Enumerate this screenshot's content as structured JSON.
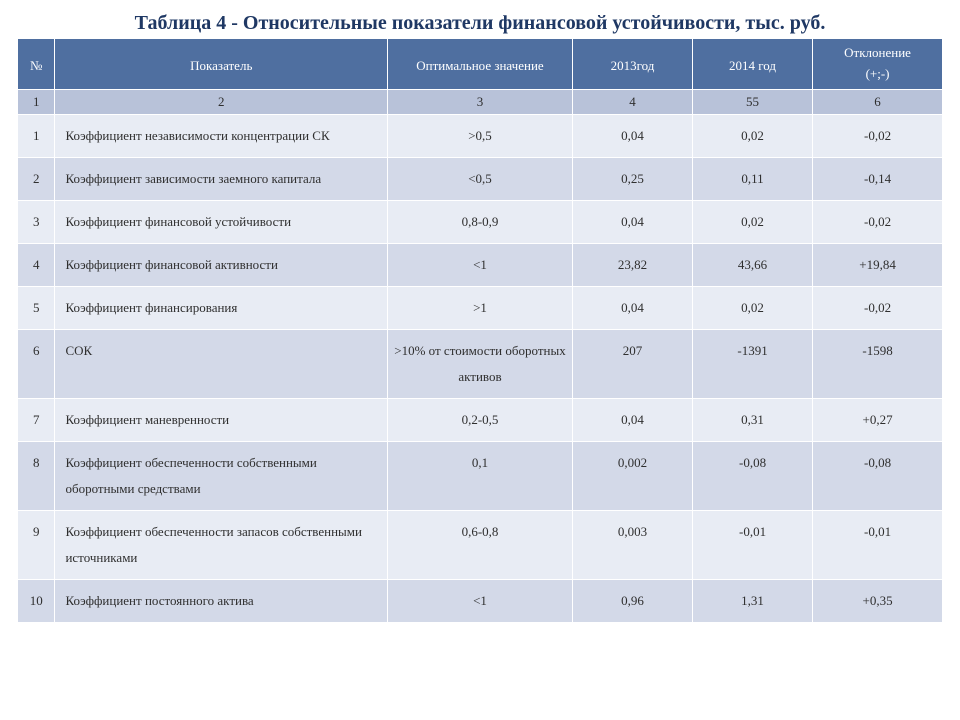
{
  "title": "Таблица 4 - Относительные показатели финансовой устойчивости, тыс. руб.",
  "title_color": "#1f3864",
  "header_bg": "#4f6fa0",
  "header_fg": "#ffffff",
  "index_row_bg": "#b8c2d9",
  "row_odd_bg": "#e8ecf4",
  "row_even_bg": "#d3d9e8",
  "columns": {
    "idx": "№",
    "name": "Показатель",
    "opt": "Оптимальное значение",
    "y1": "2013год",
    "y2": "2014 год",
    "dev": "Отклонение",
    "dev2": "(+;-)"
  },
  "index_row": [
    "1",
    "2",
    "3",
    "4",
    "55",
    "6"
  ],
  "rows": [
    {
      "idx": "1",
      "name": "Коэффициент независимости концентрации СК",
      "opt": ">0,5",
      "y1": "0,04",
      "y2": "0,02",
      "dev": "-0,02"
    },
    {
      "idx": "2",
      "name": "Коэффициент зависимости заемного капитала",
      "opt": "<0,5",
      "y1": "0,25",
      "y2": "0,11",
      "dev": "-0,14"
    },
    {
      "idx": "3",
      "name": "Коэффициент финансовой устойчивости",
      "opt": "0,8-0,9",
      "y1": "0,04",
      "y2": "0,02",
      "dev": "-0,02"
    },
    {
      "idx": "4",
      "name": "Коэффициент финансовой активности",
      "opt": "<1",
      "y1": "23,82",
      "y2": "43,66",
      "dev": "+19,84"
    },
    {
      "idx": "5",
      "name": "Коэффициент финансирования",
      "opt": ">1",
      "y1": "0,04",
      "y2": "0,02",
      "dev": "-0,02"
    },
    {
      "idx": "6",
      "name": " СОК",
      "opt": ">10% от стоимости оборотных активов",
      "y1": "207",
      "y2": "-1391",
      "dev": "-1598"
    },
    {
      "idx": "7",
      "name": "Коэффициент маневренности",
      "opt": "0,2-0,5",
      "y1": "0,04",
      "y2": "0,31",
      "dev": "+0,27"
    },
    {
      "idx": "8",
      "name": "Коэффициент обеспеченности собственными оборотными средствами",
      "opt": "0,1",
      "y1": "0,002",
      "y2": "-0,08",
      "dev": "-0,08"
    },
    {
      "idx": "9",
      "name": "Коэффициент обеспеченности запасов собственными источниками",
      "opt": "0,6-0,8",
      "y1": "0,003",
      "y2": "-0,01",
      "dev": "-0,01"
    },
    {
      "idx": "10",
      "name": "Коэффициент постоянного актива",
      "opt": "<1",
      "y1": "0,96",
      "y2": "1,31",
      "dev": "+0,35"
    }
  ]
}
